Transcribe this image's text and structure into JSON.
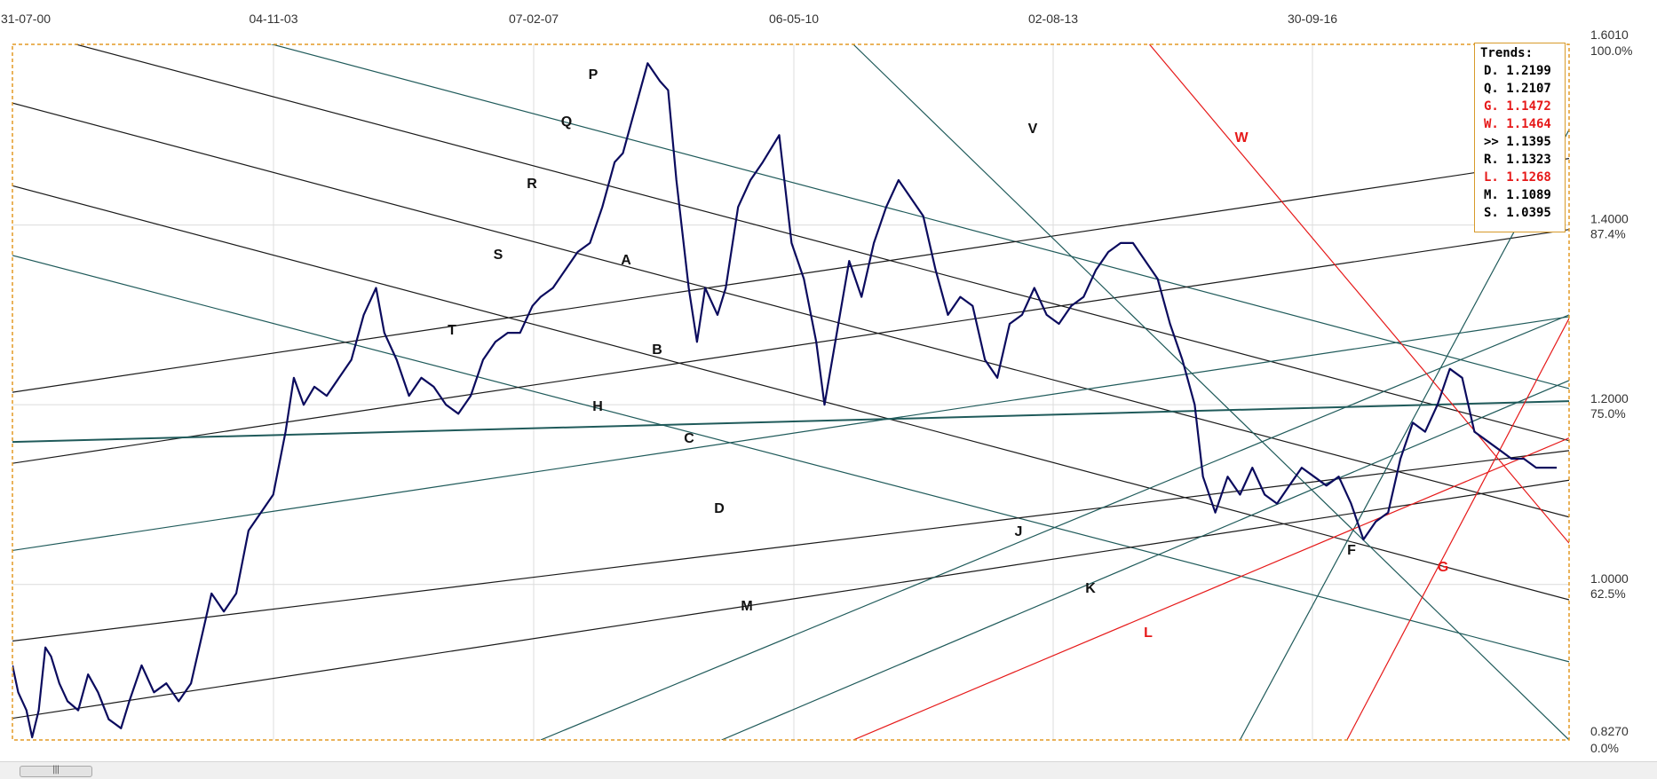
{
  "chart_data": {
    "type": "line",
    "title": "",
    "xlabel": "",
    "ylabel": "",
    "x_ticks": [
      "31-07-00",
      "04-11-03",
      "07-02-07",
      "06-05-10",
      "02-08-13",
      "30-09-16"
    ],
    "y_ticks": [
      {
        "value": "1.6010",
        "pct": "100.0%"
      },
      {
        "value": "1.4000",
        "pct": "87.4%"
      },
      {
        "value": "1.2000",
        "pct": "75.0%"
      },
      {
        "value": "1.0000",
        "pct": "62.5%"
      },
      {
        "value": "0.8270",
        "pct": "0.0%"
      }
    ],
    "ylim": [
      0.827,
      1.601
    ],
    "grid": true,
    "series": [
      {
        "color": "#0b0b5e",
        "points": [
          [
            2000.58,
            0.91
          ],
          [
            2000.65,
            0.88
          ],
          [
            2000.75,
            0.86
          ],
          [
            2000.82,
            0.83
          ],
          [
            2000.9,
            0.86
          ],
          [
            2000.98,
            0.93
          ],
          [
            2001.05,
            0.92
          ],
          [
            2001.15,
            0.89
          ],
          [
            2001.25,
            0.87
          ],
          [
            2001.38,
            0.86
          ],
          [
            2001.5,
            0.9
          ],
          [
            2001.62,
            0.88
          ],
          [
            2001.75,
            0.85
          ],
          [
            2001.9,
            0.84
          ],
          [
            2002.0,
            0.87
          ],
          [
            2002.15,
            0.91
          ],
          [
            2002.3,
            0.88
          ],
          [
            2002.45,
            0.89
          ],
          [
            2002.6,
            0.87
          ],
          [
            2002.75,
            0.89
          ],
          [
            2002.9,
            0.95
          ],
          [
            2003.0,
            0.99
          ],
          [
            2003.15,
            0.97
          ],
          [
            2003.3,
            0.99
          ],
          [
            2003.45,
            1.06
          ],
          [
            2003.6,
            1.08
          ],
          [
            2003.75,
            1.1
          ],
          [
            2003.9,
            1.17
          ],
          [
            2004.0,
            1.23
          ],
          [
            2004.12,
            1.2
          ],
          [
            2004.25,
            1.22
          ],
          [
            2004.4,
            1.21
          ],
          [
            2004.55,
            1.23
          ],
          [
            2004.7,
            1.25
          ],
          [
            2004.85,
            1.3
          ],
          [
            2005.0,
            1.33
          ],
          [
            2005.1,
            1.28
          ],
          [
            2005.25,
            1.25
          ],
          [
            2005.4,
            1.21
          ],
          [
            2005.55,
            1.23
          ],
          [
            2005.7,
            1.22
          ],
          [
            2005.85,
            1.2
          ],
          [
            2006.0,
            1.19
          ],
          [
            2006.15,
            1.21
          ],
          [
            2006.3,
            1.25
          ],
          [
            2006.45,
            1.27
          ],
          [
            2006.6,
            1.28
          ],
          [
            2006.75,
            1.28
          ],
          [
            2006.9,
            1.31
          ],
          [
            2007.0,
            1.32
          ],
          [
            2007.15,
            1.33
          ],
          [
            2007.3,
            1.35
          ],
          [
            2007.45,
            1.37
          ],
          [
            2007.6,
            1.38
          ],
          [
            2007.75,
            1.42
          ],
          [
            2007.9,
            1.47
          ],
          [
            2008.0,
            1.48
          ],
          [
            2008.15,
            1.53
          ],
          [
            2008.3,
            1.58
          ],
          [
            2008.45,
            1.56
          ],
          [
            2008.55,
            1.55
          ],
          [
            2008.65,
            1.45
          ],
          [
            2008.8,
            1.33
          ],
          [
            2008.9,
            1.27
          ],
          [
            2009.0,
            1.33
          ],
          [
            2009.15,
            1.3
          ],
          [
            2009.25,
            1.33
          ],
          [
            2009.4,
            1.42
          ],
          [
            2009.55,
            1.45
          ],
          [
            2009.7,
            1.47
          ],
          [
            2009.9,
            1.5
          ],
          [
            2010.05,
            1.38
          ],
          [
            2010.2,
            1.34
          ],
          [
            2010.35,
            1.27
          ],
          [
            2010.45,
            1.2
          ],
          [
            2010.6,
            1.28
          ],
          [
            2010.75,
            1.36
          ],
          [
            2010.9,
            1.32
          ],
          [
            2011.05,
            1.38
          ],
          [
            2011.2,
            1.42
          ],
          [
            2011.35,
            1.45
          ],
          [
            2011.5,
            1.43
          ],
          [
            2011.65,
            1.41
          ],
          [
            2011.8,
            1.35
          ],
          [
            2011.95,
            1.3
          ],
          [
            2012.1,
            1.32
          ],
          [
            2012.25,
            1.31
          ],
          [
            2012.4,
            1.25
          ],
          [
            2012.55,
            1.23
          ],
          [
            2012.7,
            1.29
          ],
          [
            2012.85,
            1.3
          ],
          [
            2013.0,
            1.33
          ],
          [
            2013.15,
            1.3
          ],
          [
            2013.3,
            1.29
          ],
          [
            2013.45,
            1.31
          ],
          [
            2013.6,
            1.32
          ],
          [
            2013.75,
            1.35
          ],
          [
            2013.9,
            1.37
          ],
          [
            2014.05,
            1.38
          ],
          [
            2014.2,
            1.38
          ],
          [
            2014.35,
            1.36
          ],
          [
            2014.5,
            1.34
          ],
          [
            2014.65,
            1.29
          ],
          [
            2014.8,
            1.25
          ],
          [
            2014.95,
            1.2
          ],
          [
            2015.05,
            1.12
          ],
          [
            2015.2,
            1.08
          ],
          [
            2015.35,
            1.12
          ],
          [
            2015.5,
            1.1
          ],
          [
            2015.65,
            1.13
          ],
          [
            2015.8,
            1.1
          ],
          [
            2015.95,
            1.09
          ],
          [
            2016.1,
            1.11
          ],
          [
            2016.25,
            1.13
          ],
          [
            2016.4,
            1.12
          ],
          [
            2016.55,
            1.11
          ],
          [
            2016.7,
            1.12
          ],
          [
            2016.85,
            1.09
          ],
          [
            2017.0,
            1.05
          ],
          [
            2017.15,
            1.07
          ],
          [
            2017.3,
            1.08
          ],
          [
            2017.45,
            1.14
          ],
          [
            2017.6,
            1.18
          ],
          [
            2017.75,
            1.17
          ],
          [
            2017.9,
            1.2
          ],
          [
            2018.05,
            1.24
          ],
          [
            2018.2,
            1.23
          ],
          [
            2018.35,
            1.17
          ],
          [
            2018.5,
            1.16
          ],
          [
            2018.65,
            1.15
          ],
          [
            2018.8,
            1.14
          ],
          [
            2018.95,
            1.14
          ],
          [
            2019.1,
            1.13
          ],
          [
            2019.25,
            1.13
          ],
          [
            2019.35,
            1.13
          ]
        ]
      }
    ],
    "trend_lines": [
      {
        "label": "P",
        "color": "#1f5a5a",
        "points": [
          [
            1999.5,
            1.704
          ],
          [
            2019.5,
            1.218
          ]
        ]
      },
      {
        "label": "Q",
        "color": "#1a1a1a",
        "points": [
          [
            1999.5,
            1.646
          ],
          [
            2019.5,
            1.16
          ]
        ]
      },
      {
        "label": "R",
        "color": "#1a1a1a",
        "points": [
          [
            1999.5,
            1.562
          ],
          [
            2019.5,
            1.075
          ]
        ]
      },
      {
        "label": "S",
        "color": "#1a1a1a",
        "points": [
          [
            1999.5,
            1.47
          ],
          [
            2019.5,
            0.983
          ]
        ]
      },
      {
        "label": "T",
        "color": "#1f5a5a",
        "points": [
          [
            1999.5,
            1.392
          ],
          [
            2019.5,
            0.914
          ]
        ]
      },
      {
        "label": "A",
        "color": "#1a1a1a",
        "points": [
          [
            1999.5,
            1.199
          ],
          [
            2019.5,
            1.474
          ]
        ]
      },
      {
        "label": "B",
        "color": "#1a1a1a",
        "points": [
          [
            1999.5,
            1.12
          ],
          [
            2019.5,
            1.395
          ]
        ]
      },
      {
        "label": "C",
        "color": "#1f5a5a",
        "points": [
          [
            1999.5,
            1.023
          ],
          [
            2019.5,
            1.298
          ]
        ]
      },
      {
        "label": "D",
        "color": "#1a1a1a",
        "points": [
          [
            1999.5,
            0.925
          ],
          [
            2019.5,
            1.149
          ]
        ]
      },
      {
        "label": "M",
        "color": "#1a1a1a",
        "points": [
          [
            1999.5,
            0.836
          ],
          [
            2019.5,
            1.116
          ]
        ]
      },
      {
        "label": "H",
        "color": "#1f5a5a",
        "points": [
          [
            1999.5,
            1.156
          ],
          [
            2019.5,
            1.204
          ]
        ]
      },
      {
        "label": "J",
        "color": "#1f5a5a",
        "points": [
          [
            2007.0,
            0.827
          ],
          [
            2019.5,
            1.3
          ]
        ]
      },
      {
        "label": "K",
        "color": "#1f5a5a",
        "points": [
          [
            2009.2,
            0.827
          ],
          [
            2019.5,
            1.227
          ]
        ]
      },
      {
        "label": "F",
        "color": "#1f5a5a",
        "points": [
          [
            2015.5,
            0.827
          ],
          [
            2019.5,
            1.506
          ]
        ]
      },
      {
        "label": "V",
        "color": "#1f5a5a",
        "points": [
          [
            2010.8,
            1.601
          ],
          [
            2019.5,
            0.827
          ]
        ]
      },
      {
        "label": "W",
        "color": "#e61919",
        "points": [
          [
            2014.4,
            1.601
          ],
          [
            2019.5,
            1.046
          ]
        ]
      },
      {
        "label": "L",
        "color": "#e61919",
        "points": [
          [
            2010.8,
            0.827
          ],
          [
            2019.5,
            1.163
          ]
        ]
      },
      {
        "label": "G",
        "color": "#e61919",
        "points": [
          [
            2016.8,
            0.827
          ],
          [
            2019.5,
            1.296
          ]
        ]
      }
    ],
    "trends_legend": {
      "title": "Trends:",
      "entries": [
        {
          "text": "D. 1.2199",
          "color": "#000000"
        },
        {
          "text": "Q. 1.2107",
          "color": "#000000"
        },
        {
          "text": "G. 1.1472",
          "color": "#e61919"
        },
        {
          "text": "W. 1.1464",
          "color": "#e61919"
        },
        {
          "text": ">> 1.1395",
          "color": "#000000"
        },
        {
          "text": "R. 1.1323",
          "color": "#000000"
        },
        {
          "text": "L. 1.1268",
          "color": "#e61919"
        },
        {
          "text": "M. 1.1089",
          "color": "#000000"
        },
        {
          "text": "S. 1.0395",
          "color": "#000000"
        }
      ],
      "placement": "top-right"
    },
    "frame_color": "#e39a25"
  },
  "scrollbar": {
    "thumb_grip": "|||"
  }
}
